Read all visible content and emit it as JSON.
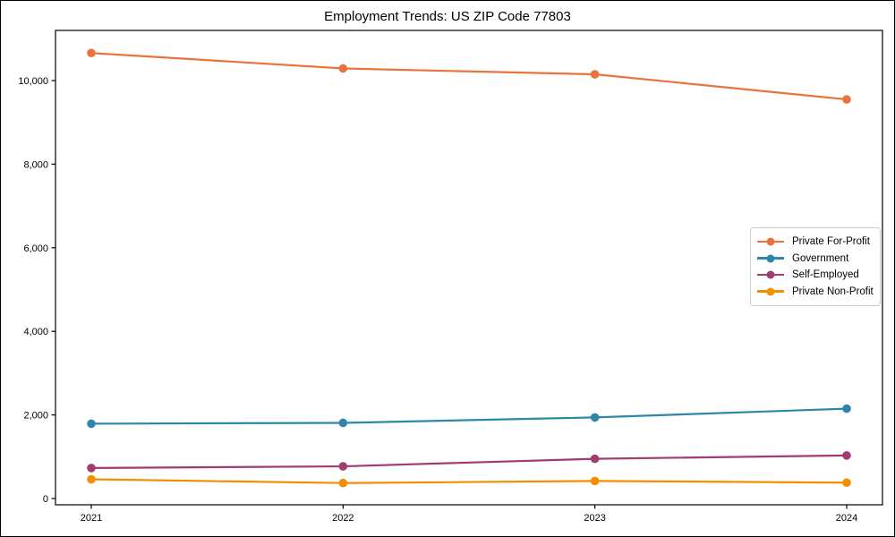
{
  "figure": {
    "background": "#ffffff",
    "border_color": "#000000"
  },
  "chart_data": {
    "type": "line",
    "title": "Employment Trends: US ZIP Code 77803",
    "xlabel": "",
    "ylabel": "",
    "categories": [
      "2021",
      "2022",
      "2023",
      "2024"
    ],
    "series": [
      {
        "name": "Private For-Profit",
        "color": "#E8743B",
        "values": [
          10660,
          10290,
          10150,
          9550
        ]
      },
      {
        "name": "Government",
        "color": "#2E86AB",
        "values": [
          1790,
          1810,
          1940,
          2150
        ]
      },
      {
        "name": "Self-Employed",
        "color": "#A23B72",
        "values": [
          730,
          770,
          950,
          1030
        ]
      },
      {
        "name": "Private Non-Profit",
        "color": "#F18F01",
        "values": [
          460,
          370,
          420,
          380
        ]
      }
    ],
    "ylim": [
      -150,
      11200
    ],
    "yticks": [
      0,
      2000,
      4000,
      6000,
      8000,
      10000
    ],
    "ytick_labels": [
      "0",
      "2,000",
      "4,000",
      "6,000",
      "8,000",
      "10,000"
    ],
    "grid": false,
    "legend_position": "center right",
    "marker": "circle",
    "line_width": 2.2,
    "marker_radius": 4.8,
    "axis_color": "#000000",
    "tick_label_color": "#000000"
  }
}
